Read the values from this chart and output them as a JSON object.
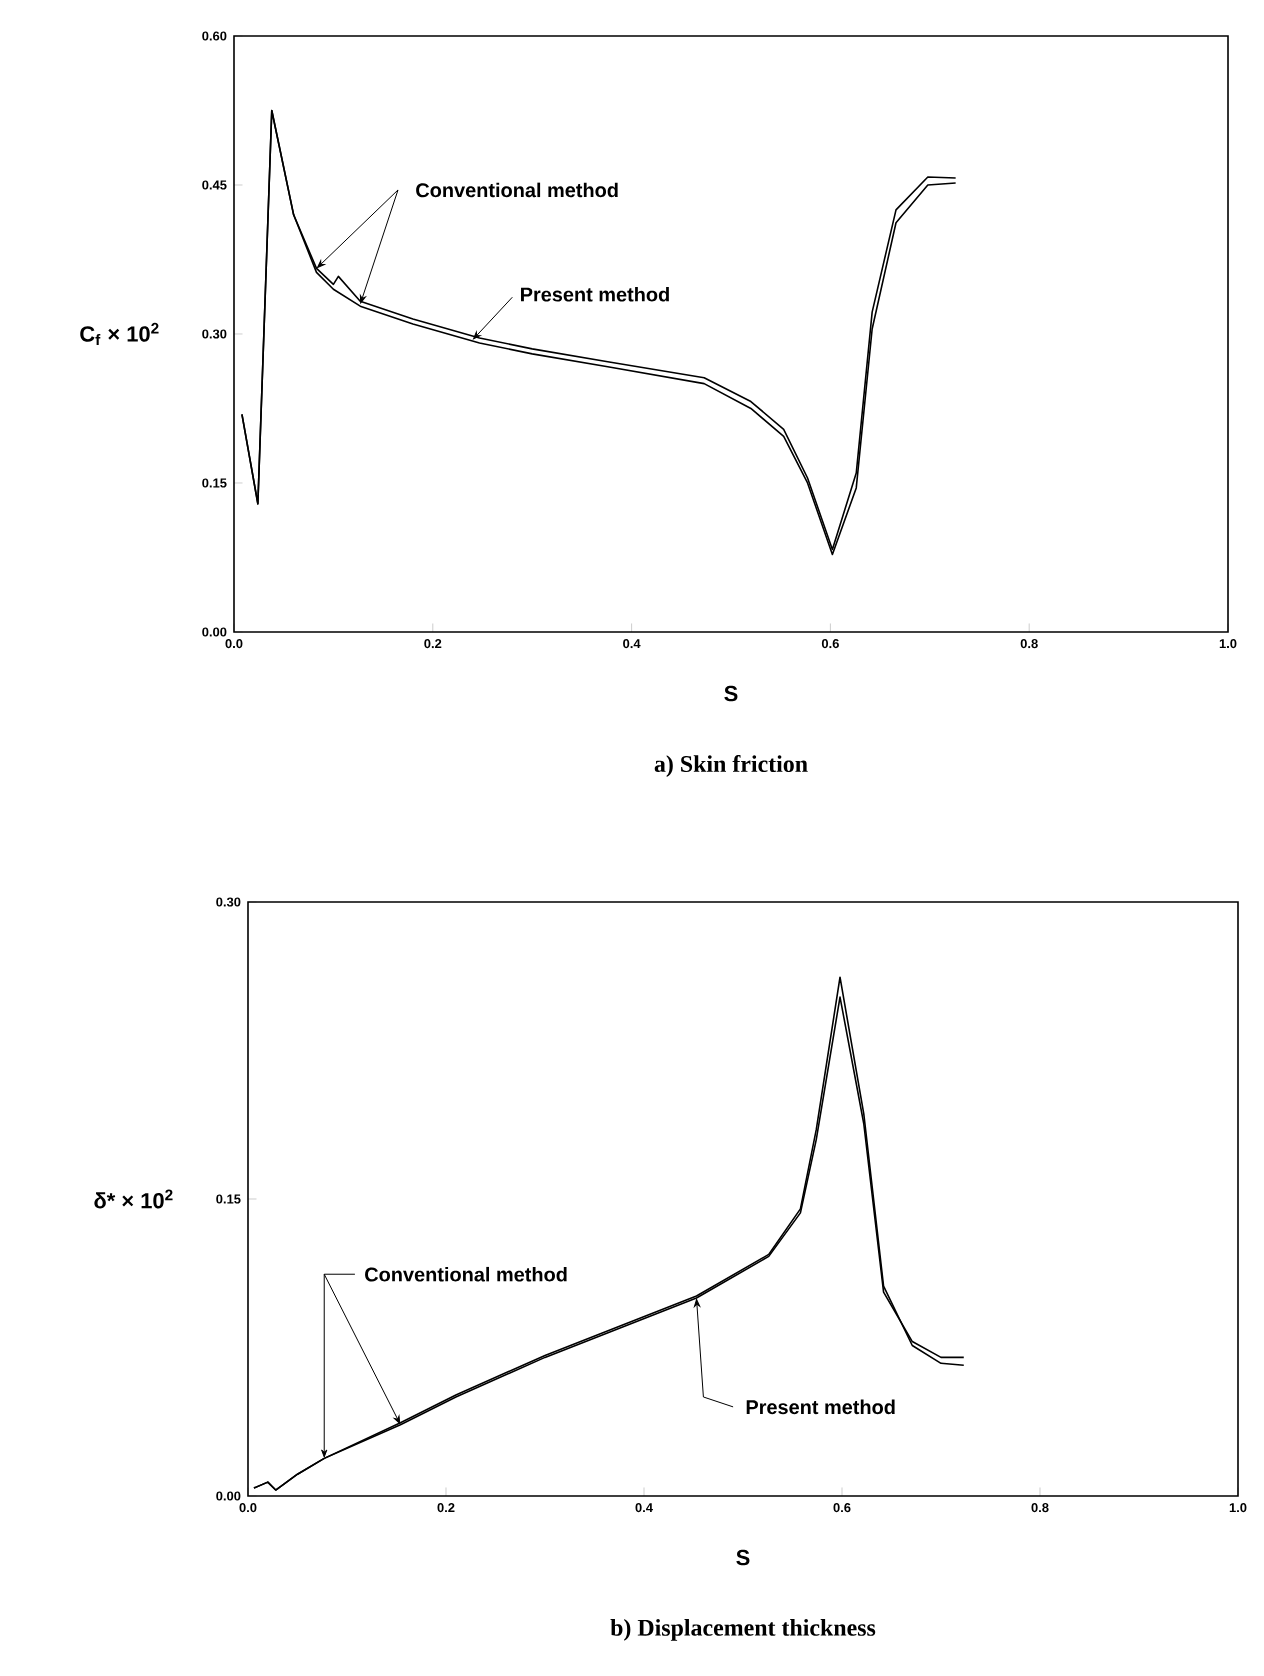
{
  "chart_data": [
    {
      "type": "line",
      "title": "a)  Skin friction",
      "xlabel": "S",
      "ylabel": "C$_{f}$ × 10$^{2}$",
      "xlim": [
        0,
        1
      ],
      "ylim": [
        0,
        0.6
      ],
      "xticks": [
        {
          "value": 0,
          "label": "0.0"
        },
        {
          "value": 0.2,
          "label": "0.2"
        },
        {
          "value": 0.4,
          "label": "0.4"
        },
        {
          "value": 0.6,
          "label": "0.6"
        },
        {
          "value": 0.8,
          "label": "0.8"
        },
        {
          "value": 1,
          "label": "1.0"
        }
      ],
      "yticks": [
        {
          "value": 0,
          "label": "0.00"
        },
        {
          "value": 0.15,
          "label": "0.15"
        },
        {
          "value": 0.3,
          "label": "0.30"
        },
        {
          "value": 0.45,
          "label": "0.45"
        },
        {
          "value": 0.6,
          "label": "0.60"
        }
      ],
      "grid": false,
      "series": [
        {
          "color": "#000000",
          "x": [
            0.008,
            0.024,
            0.038,
            0.06,
            0.083,
            0.1,
            0.127,
            0.18,
            0.247,
            0.3,
            0.376,
            0.473,
            0.52,
            0.553,
            0.577,
            0.602,
            0.626,
            0.642,
            0.666,
            0.698,
            0.726
          ],
          "values": [
            0.219,
            0.129,
            0.525,
            0.42,
            0.362,
            0.345,
            0.328,
            0.31,
            0.291,
            0.28,
            0.267,
            0.25,
            0.225,
            0.197,
            0.15,
            0.078,
            0.145,
            0.305,
            0.412,
            0.45,
            0.452
          ]
        },
        {
          "color": "#000000",
          "x": [
            0.008,
            0.024,
            0.038,
            0.06,
            0.083,
            0.1,
            0.105,
            0.127,
            0.18,
            0.247,
            0.3,
            0.376,
            0.473,
            0.52,
            0.553,
            0.577,
            0.602,
            0.626,
            0.642,
            0.666,
            0.698,
            0.726
          ],
          "values": [
            0.219,
            0.129,
            0.525,
            0.42,
            0.366,
            0.35,
            0.358,
            0.333,
            0.315,
            0.296,
            0.285,
            0.272,
            0.256,
            0.232,
            0.204,
            0.155,
            0.083,
            0.16,
            0.322,
            0.425,
            0.458,
            0.457
          ]
        }
      ],
      "annotations": [
        {
          "text": "Conventional method",
          "x": 0.083,
          "y": 0.366
        },
        {
          "text": "Present method",
          "x": 0.24,
          "y": 0.294
        }
      ]
    },
    {
      "type": "line",
      "title": "b)  Displacement thickness",
      "xlabel": "S",
      "ylabel": "δ* × 10$^{2}$",
      "xlim": [
        0,
        1
      ],
      "ylim": [
        0,
        0.3
      ],
      "xticks": [
        {
          "value": 0,
          "label": "0.0"
        },
        {
          "value": 0.2,
          "label": "0.2"
        },
        {
          "value": 0.4,
          "label": "0.4"
        },
        {
          "value": 0.6,
          "label": "0.6"
        },
        {
          "value": 0.8,
          "label": "0.8"
        },
        {
          "value": 1,
          "label": "1.0"
        }
      ],
      "yticks": [
        {
          "value": 0,
          "label": "0.00"
        },
        {
          "value": 0.15,
          "label": "0.15"
        },
        {
          "value": 0.3,
          "label": "0.30"
        }
      ],
      "grid": false,
      "series": [
        {
          "color": "#000000",
          "x": [
            0.006,
            0.02,
            0.028,
            0.05,
            0.077,
            0.154,
            0.21,
            0.3,
            0.453,
            0.526,
            0.558,
            0.574,
            0.598,
            0.622,
            0.642,
            0.671,
            0.7,
            0.723
          ],
          "values": [
            0.004,
            0.007,
            0.003,
            0.011,
            0.019,
            0.036,
            0.05,
            0.07,
            0.1,
            0.121,
            0.143,
            0.18,
            0.252,
            0.188,
            0.103,
            0.078,
            0.07,
            0.07
          ]
        },
        {
          "color": "#000000",
          "x": [
            0.006,
            0.02,
            0.028,
            0.05,
            0.077,
            0.154,
            0.21,
            0.3,
            0.453,
            0.526,
            0.558,
            0.574,
            0.598,
            0.622,
            0.642,
            0.671,
            0.7,
            0.723
          ],
          "values": [
            0.004,
            0.007,
            0.003,
            0.011,
            0.019,
            0.037,
            0.051,
            0.071,
            0.101,
            0.122,
            0.145,
            0.185,
            0.262,
            0.193,
            0.106,
            0.076,
            0.067,
            0.066
          ]
        }
      ],
      "annotations": [
        {
          "text": "Conventional method",
          "x": 0.077,
          "y": 0.019
        },
        {
          "text": "Present method",
          "x": 0.453,
          "y": 0.1
        }
      ]
    }
  ]
}
